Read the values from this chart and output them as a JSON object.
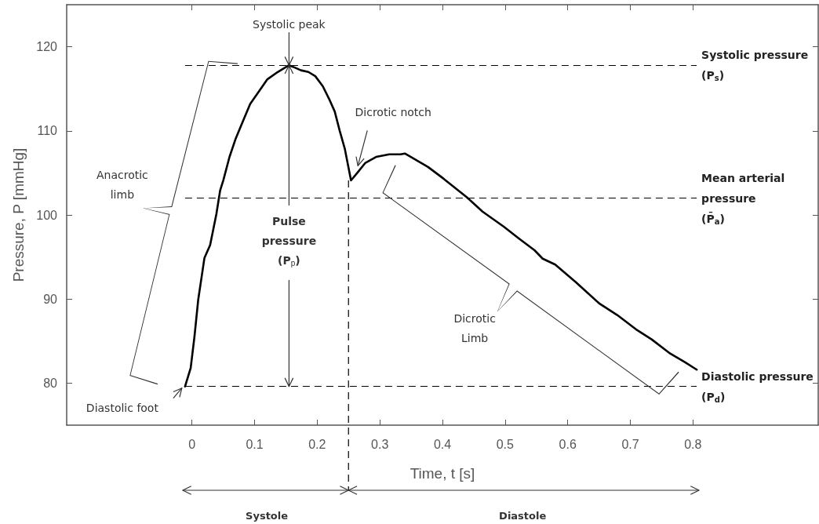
{
  "chart_data": {
    "type": "line",
    "xlabel": "Time, t [s]",
    "ylabel": "Pressure, P [mmHg]",
    "color": "#000000",
    "marker": "none",
    "grid": false,
    "x": [
      -0.011,
      -0.002,
      0.004,
      0.01,
      0.02,
      0.029,
      0.039,
      0.045,
      0.05,
      0.06,
      0.07,
      0.08,
      0.093,
      0.107,
      0.12,
      0.137,
      0.155,
      0.165,
      0.174,
      0.186,
      0.197,
      0.209,
      0.219,
      0.228,
      0.236,
      0.244,
      0.254,
      0.265,
      0.277,
      0.294,
      0.315,
      0.333,
      0.34,
      0.377,
      0.402,
      0.439,
      0.464,
      0.498,
      0.522,
      0.547,
      0.56,
      0.58,
      0.613,
      0.65,
      0.679,
      0.709,
      0.734,
      0.762,
      0.787,
      0.806
    ],
    "values": [
      79.6,
      81.8,
      85.5,
      89.9,
      94.9,
      96.4,
      100.1,
      102.9,
      104.1,
      106.9,
      109.1,
      110.9,
      113.2,
      114.7,
      116.1,
      117.0,
      117.8,
      117.5,
      117.2,
      117.0,
      116.5,
      115.3,
      113.8,
      112.3,
      110.0,
      107.9,
      104.1,
      105.1,
      106.2,
      106.9,
      107.2,
      107.2,
      107.3,
      105.7,
      104.3,
      102.1,
      100.4,
      98.6,
      97.2,
      95.8,
      94.8,
      94.1,
      92.0,
      89.5,
      88.1,
      86.4,
      85.2,
      83.6,
      82.5,
      81.6
    ],
    "xlim": [
      -0.2,
      1.0
    ],
    "xticks": [
      0,
      0.1,
      0.2,
      0.3,
      0.4,
      0.5,
      0.6,
      0.7,
      0.8
    ],
    "ylim": [
      75,
      125
    ],
    "yticks": [
      80,
      90,
      100,
      110,
      120
    ],
    "ref_lines": [
      {
        "axis": "y",
        "value": 117.8,
        "label": "Systolic pressure\n(P$_{s}$)",
        "line_style": "dashed"
      },
      {
        "axis": "y",
        "value": 102.0,
        "label": "Mean arterial\npressure\n(P̄$_{a}$)",
        "line_style": "dashed"
      },
      {
        "axis": "y",
        "value": 79.6,
        "label": "Diastolic pressure\n(P$_{d}$)",
        "line_style": "dashed"
      },
      {
        "axis": "x",
        "value": 0.25,
        "line_style": "dashed"
      }
    ],
    "annotations": [
      {
        "text": "Systolic peak",
        "x": 0.155,
        "y": 117.8
      },
      {
        "text": "Dicrotic notch",
        "x": 0.265,
        "y": 105.1
      },
      "Anacrotic\nlimb",
      "Dicrotic\nLimb",
      {
        "text": "Diastolic foot",
        "x": -0.011,
        "y": 79.6
      },
      {
        "text": "Pulse\npressure\n(P$_{p}$)",
        "x": 0.155,
        "y": 117.8
      },
      "Systole",
      "Diastole"
    ]
  }
}
